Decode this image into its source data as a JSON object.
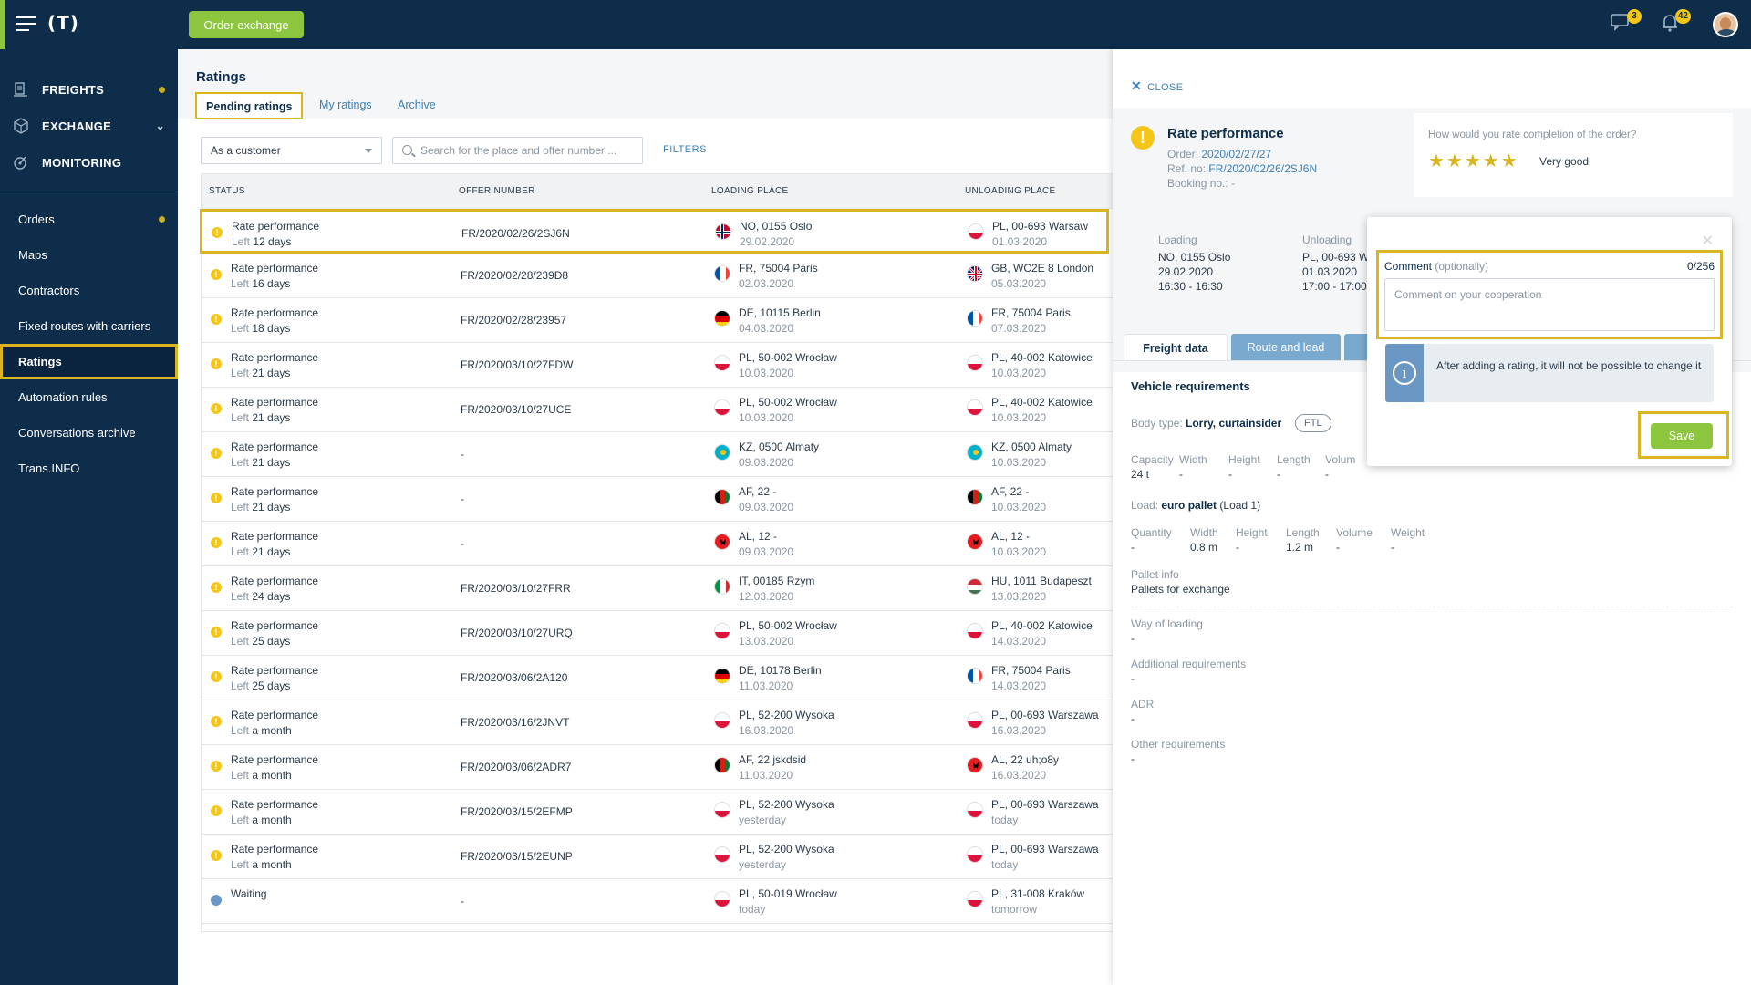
{
  "topbar": {
    "logo": "(T)",
    "order_exchange": "Order exchange",
    "messages_badge": "3",
    "notifications_badge": "42"
  },
  "sidebar": {
    "main": [
      {
        "label": "FREIGHTS",
        "icon": "freights-icon"
      },
      {
        "label": "EXCHANGE",
        "icon": "exchange-icon"
      },
      {
        "label": "MONITORING",
        "icon": "monitoring-icon"
      }
    ],
    "sub": [
      "Orders",
      "Maps",
      "Contractors",
      "Fixed routes with carriers",
      "Ratings",
      "Automation rules",
      "Conversations archive",
      "Trans.INFO"
    ]
  },
  "main": {
    "title": "Ratings",
    "tabs": [
      "Pending ratings",
      "My ratings",
      "Archive"
    ],
    "role_select": "As a customer",
    "search_placeholder": "Search for the place and offer number ...",
    "filters": "FILTERS",
    "columns": [
      "STATUS",
      "OFFER NUMBER",
      "LOADING PLACE",
      "UNLOADING PLACE"
    ],
    "rows": [
      {
        "status": "Rate performance",
        "left_label": "Left",
        "left": "12 days",
        "offer": "FR/2020/02/26/2SJ6N",
        "load": "NO, 0155 Oslo",
        "load_date": "29.02.2020",
        "unload": "PL, 00-693 Warsaw",
        "unload_date": "01.03.2020"
      },
      {
        "status": "Rate performance",
        "left_label": "Left",
        "left": "16 days",
        "offer": "FR/2020/02/28/239D8",
        "load": "FR, 75004 Paris",
        "load_date": "02.03.2020",
        "unload": "GB, WC2E 8 London",
        "unload_date": "05.03.2020"
      },
      {
        "status": "Rate performance",
        "left_label": "Left",
        "left": "18 days",
        "offer": "FR/2020/02/28/23957",
        "load": "DE, 10115 Berlin",
        "load_date": "04.03.2020",
        "unload": "FR, 75004 Paris",
        "unload_date": "07.03.2020"
      },
      {
        "status": "Rate performance",
        "left_label": "Left",
        "left": "21 days",
        "offer": "FR/2020/03/10/27FDW",
        "load": "PL, 50-002 Wrocław",
        "load_date": "10.03.2020",
        "unload": "PL, 40-002 Katowice",
        "unload_date": "10.03.2020"
      },
      {
        "status": "Rate performance",
        "left_label": "Left",
        "left": "21 days",
        "offer": "FR/2020/03/10/27UCE",
        "load": "PL, 50-002 Wrocław",
        "load_date": "10.03.2020",
        "unload": "PL, 40-002 Katowice",
        "unload_date": "10.03.2020"
      },
      {
        "status": "Rate performance",
        "left_label": "Left",
        "left": "21 days",
        "offer": "-",
        "load": "KZ, 0500 Almaty",
        "load_date": "09.03.2020",
        "unload": "KZ, 0500 Almaty",
        "unload_date": "10.03.2020"
      },
      {
        "status": "Rate performance",
        "left_label": "Left",
        "left": "21 days",
        "offer": "-",
        "load": "AF, 22 -",
        "load_date": "09.03.2020",
        "unload": "AF, 22 -",
        "unload_date": "10.03.2020"
      },
      {
        "status": "Rate performance",
        "left_label": "Left",
        "left": "21 days",
        "offer": "-",
        "load": "AL, 12 -",
        "load_date": "09.03.2020",
        "unload": "AL, 12 -",
        "unload_date": "10.03.2020"
      },
      {
        "status": "Rate performance",
        "left_label": "Left",
        "left": "24 days",
        "offer": "FR/2020/03/10/27FRR",
        "load": "IT, 00185 Rzym",
        "load_date": "12.03.2020",
        "unload": "HU, 1011 Budapeszt",
        "unload_date": "13.03.2020"
      },
      {
        "status": "Rate performance",
        "left_label": "Left",
        "left": "25 days",
        "offer": "FR/2020/03/10/27URQ",
        "load": "PL, 50-002 Wrocław",
        "load_date": "13.03.2020",
        "unload": "PL, 40-002 Katowice",
        "unload_date": "14.03.2020"
      },
      {
        "status": "Rate performance",
        "left_label": "Left",
        "left": "25 days",
        "offer": "FR/2020/03/06/2A120",
        "load": "DE, 10178 Berlin",
        "load_date": "11.03.2020",
        "unload": "FR, 75004 Paris",
        "unload_date": "14.03.2020"
      },
      {
        "status": "Rate performance",
        "left_label": "Left",
        "left": "a month",
        "offer": "FR/2020/03/16/2JNVT",
        "load": "PL, 52-200 Wysoka",
        "load_date": "16.03.2020",
        "unload": "PL, 00-693 Warszawa",
        "unload_date": "16.03.2020"
      },
      {
        "status": "Rate performance",
        "left_label": "Left",
        "left": "a month",
        "offer": "FR/2020/03/06/2ADR7",
        "load": "AF, 22 jskdsid",
        "load_date": "11.03.2020",
        "unload": "AL, 22 uh;o8y",
        "unload_date": "16.03.2020"
      },
      {
        "status": "Rate performance",
        "left_label": "Left",
        "left": "a month",
        "offer": "FR/2020/03/15/2EFMP",
        "load": "PL, 52-200 Wysoka",
        "load_date": "yesterday",
        "unload": "PL, 00-693 Warszawa",
        "unload_date": "today"
      },
      {
        "status": "Rate performance",
        "left_label": "Left",
        "left": "a month",
        "offer": "FR/2020/03/15/2EUNP",
        "load": "PL, 52-200 Wysoka",
        "load_date": "yesterday",
        "unload": "PL, 00-693 Warszawa",
        "unload_date": "today"
      },
      {
        "status": "Waiting",
        "left_label": "",
        "left": "",
        "offer": "-",
        "load": "PL, 50-019 Wrocław",
        "load_date": "today",
        "unload": "PL, 31-008 Kraków",
        "unload_date": "tomorrow"
      }
    ]
  },
  "panel": {
    "close": "CLOSE",
    "title": "Rate performance",
    "order_label": "Order:",
    "order": "2020/02/27/27",
    "ref_label": "Ref. no:",
    "ref": "FR/2020/02/26/2SJ6N",
    "booking_label": "Booking no.:",
    "booking": "-",
    "rate_question": "How would you rate completion of the order?",
    "stars": "★★★★★",
    "rating_label": "Very good",
    "loading_label": "Loading",
    "loading_place": "NO, 0155 Oslo",
    "loading_date": "29.02.2020",
    "loading_time": "16:30 - 16:30",
    "unloading_label": "Unloading",
    "unloading_place": "PL, 00-693 W",
    "unloading_date": "01.03.2020",
    "unloading_time": "17:00 - 17:00",
    "tabs": [
      "Freight data",
      "Route and load"
    ],
    "vehicle_title": "Vehicle requirements",
    "body_type_label": "Body type:",
    "body_type": "Lorry, curtainsider",
    "ftl": "FTL",
    "vehicle_cols": [
      "Capacity",
      "Width",
      "Height",
      "Length",
      "Volum"
    ],
    "vehicle_vals": [
      "24 t",
      "-",
      "-",
      "-",
      "-"
    ],
    "load_label": "Load:",
    "load_name": "euro pallet",
    "load_suffix": "(Load 1)",
    "load_cols": [
      "Quantity",
      "Width",
      "Height",
      "Length",
      "Volume",
      "Weight"
    ],
    "load_vals": [
      "-",
      "0.8 m",
      "-",
      "1.2 m",
      "-",
      "-"
    ],
    "pallet_info_label": "Pallet info",
    "pallet_info": "Pallets for exchange",
    "way_label": "Way of loading",
    "way": "-",
    "additional_label": "Additional requirements",
    "additional": "-",
    "adr_label": "ADR",
    "adr": "-",
    "other_label": "Other requirements",
    "other": "-"
  },
  "popup": {
    "comment_label": "Comment",
    "optional": "(optionally)",
    "counter": "0/256",
    "placeholder": "Comment on your cooperation",
    "info": "After adding a rating, it will not be possible to change it",
    "save": "Save"
  }
}
